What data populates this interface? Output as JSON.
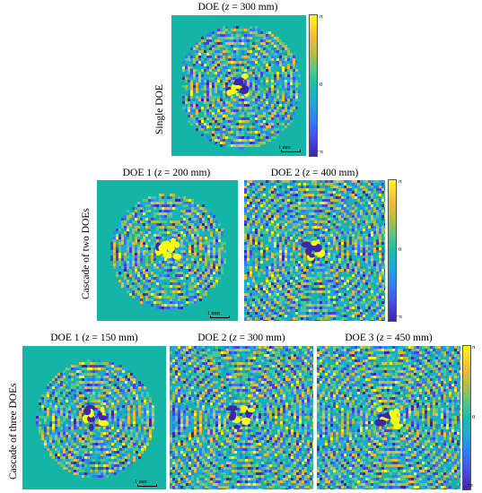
{
  "colors": {
    "background": "#14b4a6",
    "colormap": "parula"
  },
  "rows": [
    {
      "label": "Single DOE",
      "panels": [
        {
          "title_prefix": "DOE (",
          "title_var": "z",
          "title_suffix": " = 300 mm)",
          "shape": "circle-truncated"
        }
      ]
    },
    {
      "label": "Cascade of two DOEs",
      "panels": [
        {
          "title_prefix": "DOE 1 (",
          "title_var": "z",
          "title_suffix": " = 200 mm)",
          "shape": "circle"
        },
        {
          "title_prefix": "DOE 2 (",
          "title_var": "z",
          "title_suffix": " = 400 mm)",
          "shape": "full"
        }
      ]
    },
    {
      "label": "Cascade of three DOEs",
      "panels": [
        {
          "title_prefix": "DOE 1 (",
          "title_var": "z",
          "title_suffix": " = 150 mm)",
          "shape": "circle"
        },
        {
          "title_prefix": "DOE 2 (",
          "title_var": "z",
          "title_suffix": " = 300 mm)",
          "shape": "full"
        },
        {
          "title_prefix": "DOE 3 (",
          "title_var": "z",
          "title_suffix": " = 450 mm)",
          "shape": "full"
        }
      ]
    }
  ],
  "scale_bar_label": "1 mm",
  "colorbar_ticks": {
    "top": "π",
    "mid": "0",
    "bottom": "−π"
  }
}
